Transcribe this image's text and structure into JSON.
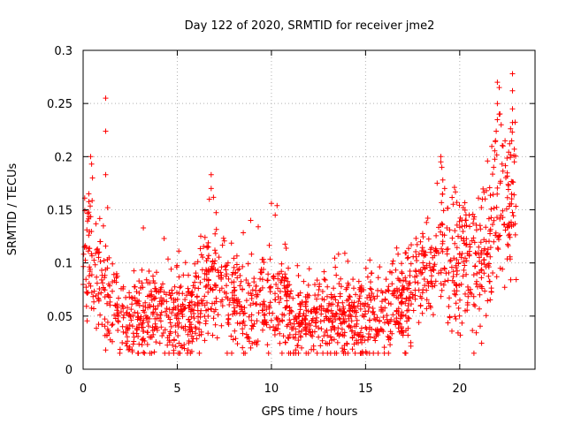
{
  "chart_data": {
    "type": "scatter",
    "title": "Day 122 of 2020, SRMTID for receiver jme2",
    "xlabel": "GPS time / hours",
    "ylabel": "SRMTID / TECUs",
    "xlim": [
      0,
      24
    ],
    "ylim": [
      0,
      0.3
    ],
    "x_ticks": [
      0,
      5,
      10,
      15,
      20
    ],
    "x_tick_labels": [
      "0",
      "5",
      "10",
      "15",
      "20"
    ],
    "y_ticks": [
      0,
      0.05,
      0.1,
      0.15,
      0.2,
      0.25,
      0.3
    ],
    "y_tick_labels": [
      "0",
      "0.05",
      "0.1",
      "0.15",
      "0.2",
      "0.25",
      "0.3"
    ],
    "grid": true,
    "marker": "plus",
    "color": "#ff0000",
    "profile": {
      "x": [
        0,
        0.5,
        1,
        1.5,
        2,
        2.5,
        3,
        4,
        5,
        6,
        6.5,
        7,
        8,
        9,
        10,
        11,
        12,
        13,
        14,
        15,
        16,
        17,
        17.5,
        18,
        19,
        20,
        21,
        21.5,
        22,
        22.5,
        23
      ],
      "y": [
        0.12,
        0.1,
        0.075,
        0.06,
        0.055,
        0.045,
        0.05,
        0.055,
        0.05,
        0.055,
        0.08,
        0.085,
        0.07,
        0.055,
        0.07,
        0.05,
        0.045,
        0.045,
        0.05,
        0.05,
        0.055,
        0.065,
        0.08,
        0.09,
        0.11,
        0.1,
        0.1,
        0.12,
        0.17,
        0.16,
        0.15
      ]
    },
    "outliers": [
      {
        "x": 1.2,
        "y": 0.255
      },
      {
        "x": 1.2,
        "y": 0.224
      },
      {
        "x": 1.2,
        "y": 0.183
      },
      {
        "x": 1.3,
        "y": 0.152
      },
      {
        "x": 0.4,
        "y": 0.2
      },
      {
        "x": 0.45,
        "y": 0.193
      },
      {
        "x": 0.5,
        "y": 0.18
      },
      {
        "x": 0.3,
        "y": 0.165
      },
      {
        "x": 6.8,
        "y": 0.183
      },
      {
        "x": 6.8,
        "y": 0.17
      },
      {
        "x": 6.7,
        "y": 0.16
      },
      {
        "x": 10,
        "y": 0.156
      },
      {
        "x": 10.3,
        "y": 0.154
      },
      {
        "x": 10.2,
        "y": 0.145
      },
      {
        "x": 3.2,
        "y": 0.133
      },
      {
        "x": 4.3,
        "y": 0.123
      },
      {
        "x": 9.3,
        "y": 0.134
      },
      {
        "x": 8.9,
        "y": 0.14
      },
      {
        "x": 19,
        "y": 0.2
      },
      {
        "x": 19,
        "y": 0.195
      },
      {
        "x": 19.05,
        "y": 0.19
      },
      {
        "x": 19.1,
        "y": 0.178
      },
      {
        "x": 18.8,
        "y": 0.175
      },
      {
        "x": 19.2,
        "y": 0.17
      },
      {
        "x": 22,
        "y": 0.27
      },
      {
        "x": 22.1,
        "y": 0.265
      },
      {
        "x": 22.8,
        "y": 0.278
      },
      {
        "x": 22.8,
        "y": 0.262
      },
      {
        "x": 22.8,
        "y": 0.245
      },
      {
        "x": 22,
        "y": 0.25
      },
      {
        "x": 22.1,
        "y": 0.24
      },
      {
        "x": 22.2,
        "y": 0.23
      },
      {
        "x": 22.8,
        "y": 0.232
      },
      {
        "x": 21.9,
        "y": 0.215
      },
      {
        "x": 22.3,
        "y": 0.21
      },
      {
        "x": 22.9,
        "y": 0.207
      },
      {
        "x": 22.9,
        "y": 0.195
      },
      {
        "x": 21.2,
        "y": 0.16
      },
      {
        "x": 21.8,
        "y": 0.19
      },
      {
        "x": 20.5,
        "y": 0.145
      },
      {
        "x": 20.3,
        "y": 0.14
      },
      {
        "x": 5.2,
        "y": 0.022
      },
      {
        "x": 2.6,
        "y": 0.018
      },
      {
        "x": 11.6,
        "y": 0.02
      },
      {
        "x": 14.8,
        "y": 0.025
      },
      {
        "x": 1.2,
        "y": 0.018
      },
      {
        "x": 8.9,
        "y": 0.02
      },
      {
        "x": 17.4,
        "y": 0.025
      }
    ],
    "point_count": 1800,
    "seed": 12345
  }
}
